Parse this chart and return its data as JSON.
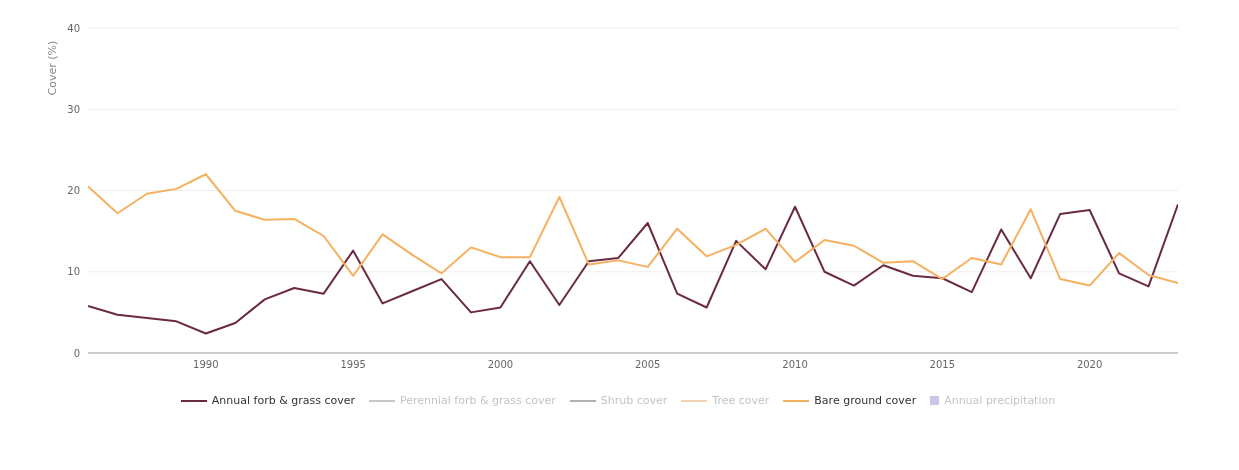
{
  "chart_data": {
    "type": "line",
    "ylabel": "Cover (%)",
    "x": [
      1986,
      1987,
      1988,
      1989,
      1990,
      1991,
      1992,
      1993,
      1994,
      1995,
      1996,
      1997,
      1998,
      1999,
      2000,
      2001,
      2002,
      2003,
      2004,
      2005,
      2006,
      2007,
      2008,
      2009,
      2010,
      2011,
      2012,
      2013,
      2014,
      2015,
      2016,
      2017,
      2018,
      2019,
      2020,
      2021,
      2022,
      2023
    ],
    "series": [
      {
        "name": "Annual forb & grass cover",
        "color": "#6b2a44",
        "values": [
          5.8,
          4.7,
          4.3,
          3.9,
          2.4,
          3.7,
          6.6,
          8.0,
          7.3,
          12.6,
          6.1,
          7.6,
          9.1,
          5.0,
          5.6,
          11.3,
          5.9,
          11.3,
          11.7,
          16.0,
          7.3,
          5.6,
          13.8,
          10.3,
          18.0,
          10.0,
          8.3,
          10.8,
          9.5,
          9.2,
          7.5,
          15.2,
          9.2,
          17.1,
          17.6,
          9.8,
          8.2,
          18.3
        ]
      },
      {
        "name": "Perennial forb & grass cover",
        "color": "#c8c8c8",
        "values": [
          null,
          null,
          null,
          null,
          null,
          null,
          null,
          null,
          null,
          null,
          null,
          null,
          null,
          null,
          null,
          null,
          null,
          null,
          null,
          null,
          null,
          null,
          null,
          null,
          null,
          null,
          null,
          null,
          null,
          null,
          null,
          null,
          null,
          null,
          null,
          null,
          null,
          null
        ]
      },
      {
        "name": "Shrub cover",
        "color": "#b0b0b0",
        "values": [
          null,
          null,
          null,
          null,
          null,
          null,
          null,
          null,
          null,
          null,
          null,
          null,
          null,
          null,
          null,
          null,
          null,
          null,
          null,
          null,
          null,
          null,
          null,
          null,
          null,
          null,
          null,
          null,
          null,
          null,
          null,
          null,
          null,
          null,
          null,
          null,
          null,
          null
        ]
      },
      {
        "name": "Tree cover",
        "color": "#f3d2b0",
        "values": [
          null,
          null,
          null,
          null,
          null,
          null,
          null,
          null,
          null,
          null,
          null,
          null,
          null,
          null,
          null,
          null,
          null,
          null,
          null,
          null,
          null,
          null,
          null,
          null,
          null,
          null,
          null,
          null,
          null,
          null,
          null,
          null,
          null,
          null,
          null,
          null,
          null,
          null
        ]
      },
      {
        "name": "Bare ground cover",
        "color": "#f5b060",
        "values": [
          20.5,
          17.2,
          19.6,
          20.2,
          22.0,
          17.5,
          16.4,
          16.5,
          14.4,
          9.5,
          14.6,
          12.1,
          9.8,
          13.0,
          11.8,
          11.8,
          19.2,
          10.9,
          11.4,
          10.6,
          15.3,
          11.9,
          13.3,
          15.3,
          11.2,
          13.9,
          13.2,
          11.1,
          11.3,
          9.1,
          11.7,
          10.9,
          17.7,
          9.1,
          8.3,
          12.3,
          9.6,
          8.6
        ]
      },
      {
        "name": "Annual precipitation",
        "type": "bar",
        "color": "#c9c6ea",
        "values": [
          null,
          null,
          null,
          null,
          null,
          null,
          null,
          null,
          null,
          null,
          null,
          null,
          null,
          null,
          null,
          null,
          null,
          null,
          null,
          null,
          null,
          null,
          null,
          null,
          null,
          null,
          null,
          null,
          null,
          null,
          null,
          null,
          null,
          null,
          null,
          null,
          null,
          null
        ]
      }
    ],
    "xlim": [
      1986,
      2023
    ],
    "xticks": [
      1990,
      1995,
      2000,
      2005,
      2010,
      2015,
      2020
    ],
    "ylim": [
      0,
      40
    ],
    "yticks": [
      0,
      10,
      20,
      30,
      40
    ],
    "grid": "y",
    "legend": "bottom",
    "marker": "none"
  }
}
